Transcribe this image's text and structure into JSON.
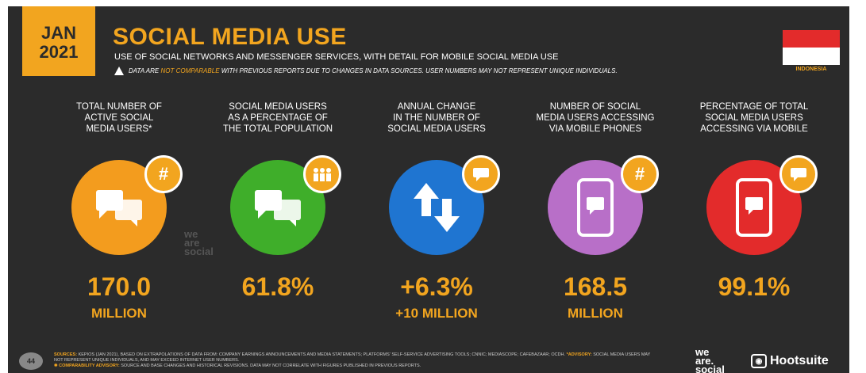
{
  "header": {
    "date_month": "JAN",
    "date_year": "2021",
    "title": "SOCIAL MEDIA USE",
    "subtitle": "USE OF SOCIAL NETWORKS AND MESSENGER SERVICES, WITH DETAIL FOR MOBILE SOCIAL MEDIA USE",
    "warning_prefix": "DATA ARE",
    "warning_highlight": "NOT COMPARABLE",
    "warning_suffix": "WITH PREVIOUS REPORTS DUE TO CHANGES IN DATA SOURCES. USER NUMBERS MAY NOT REPRESENT UNIQUE INDIVIDUALS.",
    "country": "INDONESIA"
  },
  "colors": {
    "background": "#2b2b2b",
    "accent": "#f2a51f",
    "orange_circle": "#f39c1e",
    "green_circle": "#3fae2a",
    "blue_circle": "#1f75d1",
    "purple_circle": "#b86fc8",
    "red_circle": "#e32b2b"
  },
  "stats": [
    {
      "label_lines": [
        "TOTAL NUMBER OF",
        "ACTIVE SOCIAL",
        "MEDIA USERS*"
      ],
      "value": "170.0",
      "unit": "MILLION",
      "icon": "chat-bubbles-icon",
      "badge": "hash-icon",
      "badge_text": "#"
    },
    {
      "label_lines": [
        "SOCIAL MEDIA USERS",
        "AS A PERCENTAGE OF",
        "THE TOTAL POPULATION"
      ],
      "value": "61.8%",
      "unit": "",
      "icon": "chat-bubbles-icon",
      "badge": "people-icon",
      "badge_text": "👥"
    },
    {
      "label_lines": [
        "ANNUAL CHANGE",
        "IN THE NUMBER OF",
        "SOCIAL MEDIA USERS"
      ],
      "value": "+6.3%",
      "unit": "+10 MILLION",
      "icon": "up-down-arrows-icon",
      "badge": "chat-icon",
      "badge_text": "💬"
    },
    {
      "label_lines": [
        "NUMBER OF SOCIAL",
        "MEDIA USERS ACCESSING",
        "VIA MOBILE PHONES"
      ],
      "value": "168.5",
      "unit": "MILLION",
      "icon": "mobile-chat-icon",
      "badge": "hash-icon",
      "badge_text": "#"
    },
    {
      "label_lines": [
        "PERCENTAGE OF TOTAL",
        "SOCIAL MEDIA USERS",
        "ACCESSING VIA MOBILE"
      ],
      "value": "99.1%",
      "unit": "",
      "icon": "mobile-chat-icon",
      "badge": "chat-icon",
      "badge_text": "💬"
    }
  ],
  "watermark": {
    "line1": "we",
    "line2": "are",
    "line3": "social"
  },
  "footer": {
    "page_number": "44",
    "sources_label": "SOURCES:",
    "sources_text": "KEPIOS (JAN 2021), BASED ON EXTRAPOLATIONS OF DATA FROM: COMPANY EARNINGS ANNOUNCEMENTS AND MEDIA STATEMENTS; PLATFORMS' SELF-SERVICE ADVERTISING TOOLS; CNNIC; MEDIASCOPE; CAFEBAZAAR; OCDH.",
    "advisory_label": "*ADVISORY:",
    "advisory_text": "SOCIAL MEDIA USERS MAY NOT REPRESENT UNIQUE INDIVIDUALS, AND MAY EXCEED INTERNET USER NUMBERS.",
    "comparability_label": "✱ COMPARABILITY ADVISORY:",
    "comparability_text": "SOURCE AND BASE CHANGES AND HISTORICAL REVISIONS. DATA MAY NOT CORRELATE WITH FIGURES PUBLISHED IN PREVIOUS REPORTS.",
    "we_logo": {
      "line1": "we",
      "line2": "are.",
      "line3": "social"
    },
    "hootsuite": "Hootsuite"
  }
}
